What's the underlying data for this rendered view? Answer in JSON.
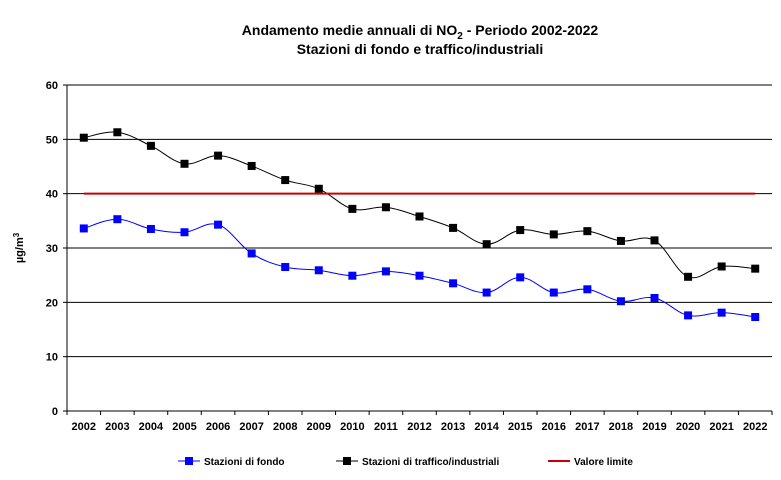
{
  "chart_data": {
    "type": "line",
    "title_line1_prefix": "Andamento medie annuali di NO",
    "title_line1_sub": "2",
    "title_line1_suffix": " - Periodo 2002-2022",
    "title_line2": "Stazioni di fondo e traffico/industriali",
    "ylabel_base": "µg/m",
    "ylabel_sup": "3",
    "ylim": [
      0,
      60
    ],
    "yticks": [
      "0",
      "10",
      "20",
      "30",
      "40",
      "50",
      "60"
    ],
    "categories": [
      "2002",
      "2003",
      "2004",
      "2005",
      "2006",
      "2007",
      "2008",
      "2009",
      "2010",
      "2011",
      "2012",
      "2013",
      "2014",
      "2015",
      "2016",
      "2017",
      "2018",
      "2019",
      "2020",
      "2021",
      "2022"
    ],
    "series": [
      {
        "name": "Stazioni di fondo",
        "color": "#0000ff",
        "marker": "square",
        "values": [
          33.6,
          35.3,
          33.5,
          32.9,
          34.3,
          29.0,
          26.5,
          25.9,
          24.9,
          25.7,
          24.9,
          23.5,
          21.8,
          24.6,
          21.8,
          22.4,
          20.2,
          20.8,
          17.6,
          18.1,
          17.3
        ]
      },
      {
        "name": "Stazioni di traffico/industriali",
        "color": "#000000",
        "marker": "square",
        "values": [
          50.3,
          51.3,
          48.8,
          45.5,
          47.0,
          45.1,
          42.5,
          40.9,
          37.2,
          37.5,
          35.8,
          33.7,
          30.7,
          33.3,
          32.5,
          33.1,
          31.3,
          31.4,
          24.7,
          26.6,
          26.2
        ]
      },
      {
        "name": "Valore limite",
        "color": "#cc0000",
        "marker": "none",
        "values": [
          40,
          40,
          40,
          40,
          40,
          40,
          40,
          40,
          40,
          40,
          40,
          40,
          40,
          40,
          40,
          40,
          40,
          40,
          40,
          40,
          40
        ]
      }
    ]
  }
}
